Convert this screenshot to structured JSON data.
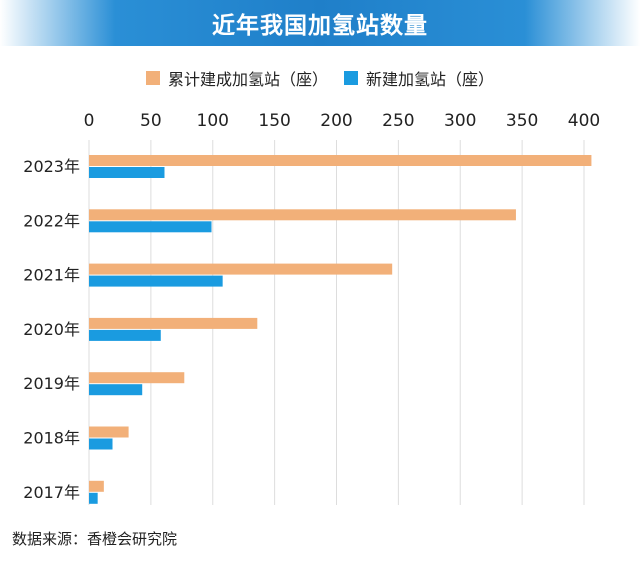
{
  "title": "近年我国加氢站数量",
  "source": "数据来源：香橙会研究院",
  "colors": {
    "cumulative": "#f2b079",
    "new": "#1a9be0",
    "grid": "#dddddd"
  },
  "chart_data": {
    "type": "bar",
    "orientation": "horizontal",
    "categories": [
      "2023年",
      "2022年",
      "2021年",
      "2020年",
      "2019年",
      "2018年",
      "2017年"
    ],
    "series": [
      {
        "name": "累计建成加氢站（座）",
        "values": [
          406,
          345,
          245,
          136,
          77,
          32,
          12
        ]
      },
      {
        "name": "新建加氢站（座）",
        "values": [
          61,
          99,
          108,
          58,
          43,
          19,
          7
        ]
      }
    ],
    "xlim": [
      0,
      400
    ],
    "xticks": [
      0,
      50,
      100,
      150,
      200,
      250,
      300,
      350,
      400
    ],
    "grid": true,
    "legend_position": "top"
  }
}
